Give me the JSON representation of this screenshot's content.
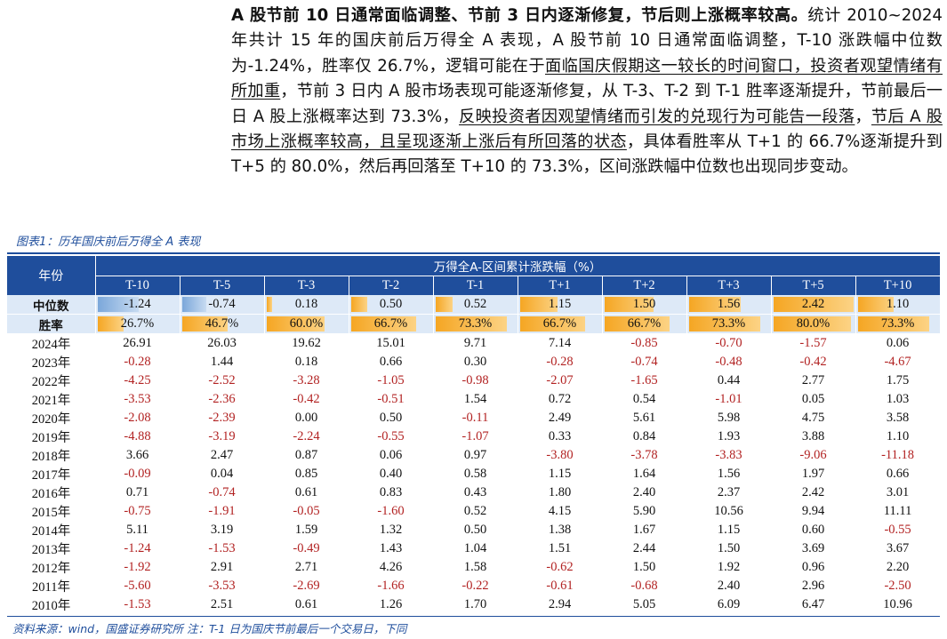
{
  "paragraph": {
    "bold_lead": "A 股节前 10 日通常面临调整、节前 3 日内逐渐修复，节后则上涨概率较高。",
    "p1": "统计 2010~2024 年共计 15 年的国庆前后万得全 A 表现，A 股节前 10 日通常面临调整，T-10 涨跌幅中位数为-1.24%，胜率仅 26.7%，逻辑可能在于",
    "u1": "面临国庆假期这一较长的时间窗口，投资者观望情绪有所加重",
    "p2": "，节前 3 日内 A 股市场表现可能逐渐修复，从 T-3、T-2 到 T-1 胜率逐渐提升，节前最后一日 A 股上涨概率达到 73.3%，",
    "u2": "反映投资者因观望情绪而引发的兑现行为可能告一段落",
    "p3": "，",
    "u3": "节后 A 股市场上涨概率较高，且呈现逐渐上涨后有所回落的状态",
    "p4": "，具体看胜率从 T+1 的 66.7%逐渐提升到 T+5 的 80.0%，然后再回落至 T+10 的 73.3%，区间涨跌幅中位数也出现同步变动。"
  },
  "figure_title": "图表1：历年国庆前后万得全 A 表现",
  "table": {
    "year_header": "年份",
    "group_header": "万得全A-区间累计涨跌幅（%）",
    "columns": [
      "T-10",
      "T-5",
      "T-3",
      "T-2",
      "T-1",
      "T+1",
      "T+2",
      "T+3",
      "T+5",
      "T+10"
    ],
    "median": {
      "label": "中位数",
      "text": [
        "-1.24",
        "-0.74",
        "0.18",
        "0.50",
        "0.52",
        "1.15",
        "1.50",
        "1.56",
        "2.42",
        "1.10"
      ],
      "values": [
        -1.24,
        -0.74,
        0.18,
        0.5,
        0.52,
        1.15,
        1.5,
        1.56,
        2.42,
        1.1
      ]
    },
    "winrate": {
      "label": "胜率",
      "text": [
        "26.7%",
        "46.7%",
        "60.0%",
        "66.7%",
        "73.3%",
        "66.7%",
        "66.7%",
        "73.3%",
        "80.0%",
        "73.3%"
      ],
      "values": [
        26.7,
        46.7,
        60.0,
        66.7,
        73.3,
        66.7,
        66.7,
        73.3,
        80.0,
        73.3
      ]
    },
    "rows": [
      {
        "year": "2024年",
        "values": [
          "26.91",
          "26.03",
          "19.62",
          "15.01",
          "9.71",
          "7.14",
          "-0.85",
          "-0.70",
          "-1.57",
          "0.06"
        ]
      },
      {
        "year": "2023年",
        "values": [
          "-0.28",
          "1.44",
          "0.18",
          "0.66",
          "0.30",
          "-0.28",
          "-0.74",
          "-0.48",
          "-0.42",
          "-4.67"
        ]
      },
      {
        "year": "2022年",
        "values": [
          "-4.25",
          "-2.52",
          "-3.28",
          "-1.05",
          "-0.98",
          "-2.07",
          "-1.65",
          "0.44",
          "2.77",
          "1.75"
        ]
      },
      {
        "year": "2021年",
        "values": [
          "-3.53",
          "-2.36",
          "-0.42",
          "-0.51",
          "1.54",
          "0.72",
          "0.54",
          "-1.01",
          "0.05",
          "1.03"
        ]
      },
      {
        "year": "2020年",
        "values": [
          "-2.08",
          "-2.39",
          "0.00",
          "0.50",
          "-0.11",
          "2.49",
          "5.61",
          "5.98",
          "4.75",
          "3.58"
        ]
      },
      {
        "year": "2019年",
        "values": [
          "-4.88",
          "-3.19",
          "-2.24",
          "-0.55",
          "-1.07",
          "0.33",
          "0.84",
          "1.93",
          "3.88",
          "1.10"
        ]
      },
      {
        "year": "2018年",
        "values": [
          "3.66",
          "2.47",
          "0.87",
          "0.06",
          "0.97",
          "-3.80",
          "-3.78",
          "-3.83",
          "-9.06",
          "-11.18"
        ]
      },
      {
        "year": "2017年",
        "values": [
          "-0.09",
          "0.04",
          "0.85",
          "0.40",
          "0.58",
          "1.15",
          "1.64",
          "1.56",
          "1.97",
          "0.66"
        ]
      },
      {
        "year": "2016年",
        "values": [
          "0.71",
          "-0.74",
          "0.61",
          "0.83",
          "0.43",
          "1.80",
          "2.40",
          "2.37",
          "2.42",
          "3.01"
        ]
      },
      {
        "year": "2015年",
        "values": [
          "-0.75",
          "-1.91",
          "-0.05",
          "-1.60",
          "0.52",
          "4.15",
          "5.90",
          "10.56",
          "9.94",
          "11.11"
        ]
      },
      {
        "year": "2014年",
        "values": [
          "5.11",
          "3.19",
          "1.59",
          "1.32",
          "0.50",
          "1.38",
          "1.67",
          "1.15",
          "0.60",
          "-0.55"
        ]
      },
      {
        "year": "2013年",
        "values": [
          "-1.24",
          "-1.53",
          "-0.49",
          "1.43",
          "1.04",
          "1.51",
          "2.44",
          "1.50",
          "3.69",
          "3.67"
        ]
      },
      {
        "year": "2012年",
        "values": [
          "-1.92",
          "2.91",
          "2.71",
          "4.26",
          "1.58",
          "-0.62",
          "1.50",
          "1.92",
          "0.96",
          "2.20"
        ]
      },
      {
        "year": "2011年",
        "values": [
          "-5.60",
          "-3.53",
          "-2.69",
          "-1.66",
          "-0.22",
          "-0.61",
          "-0.68",
          "2.40",
          "2.96",
          "-2.50"
        ]
      },
      {
        "year": "2010年",
        "values": [
          "-1.53",
          "2.51",
          "0.61",
          "1.26",
          "1.70",
          "2.94",
          "5.05",
          "6.09",
          "6.47",
          "10.96"
        ]
      }
    ]
  },
  "source_note": "资料来源：wind，国盛证券研究所    注：T-1 日为国庆节前最后一个交易日，下同",
  "colors": {
    "header_bg": "#1f4e9c",
    "stat_row_bg": "#dde9f7",
    "positive_bar": "#f5a623",
    "negative_bar": "#7ba7da",
    "negative_text": "#b22222"
  }
}
